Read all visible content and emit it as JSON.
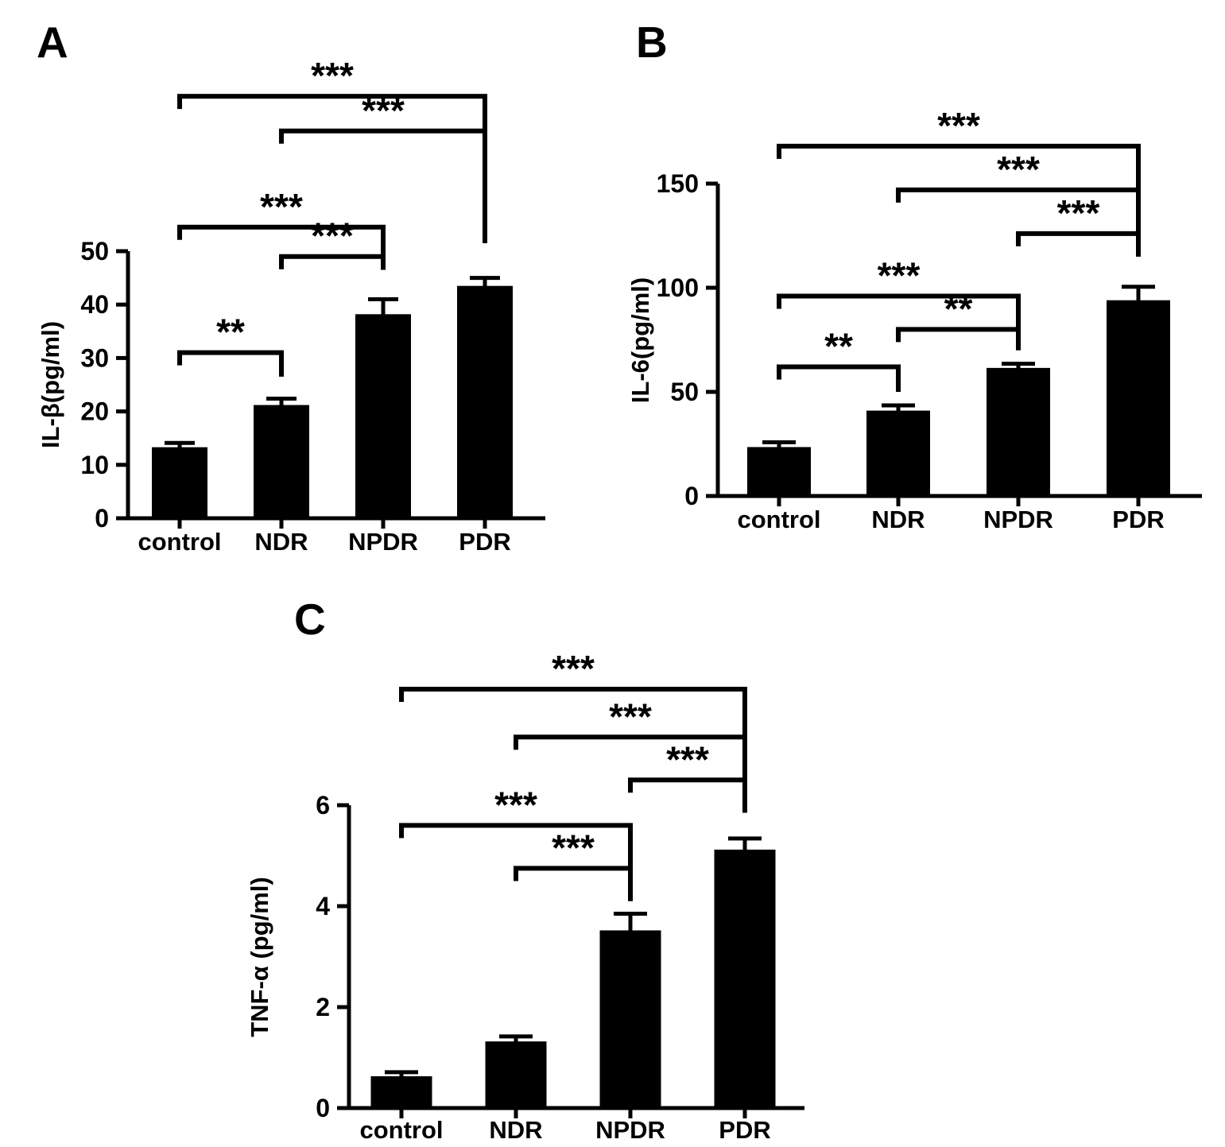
{
  "figure": {
    "background_color": "#ffffff",
    "bar_color": "#000000",
    "axis_color": "#000000",
    "description": "Three-panel bar figure comparing inflammatory cytokine levels (IL-β, IL-6, TNF-α) across control, NDR, NPDR and PDR groups with significance brackets"
  },
  "chart_data": [
    {
      "panel": "A",
      "type": "bar",
      "title": "",
      "xlabel": "",
      "ylabel": "IL-β(pg/ml)",
      "categories": [
        "control",
        "NDR",
        "NPDR",
        "PDR"
      ],
      "values": [
        13.3,
        21.2,
        38.2,
        43.5
      ],
      "errors": [
        0.8,
        1.2,
        2.8,
        1.5
      ],
      "ylim": [
        0,
        50
      ],
      "yticks": [
        0,
        10,
        20,
        30,
        40,
        50
      ],
      "grid": false,
      "legend": null,
      "significance": [
        {
          "a": "control",
          "b": "NDR",
          "label": "**",
          "y": 31,
          "right_end": 26.5
        },
        {
          "a": "NDR",
          "b": "NPDR",
          "label": "***",
          "y": 49,
          "right_end": 46.5
        },
        {
          "a": "control",
          "b": "NPDR",
          "label": "***",
          "y": 54.5,
          "right_end": 46.5
        },
        {
          "a": "NDR",
          "b": "PDR",
          "label": "***",
          "y": 72.5,
          "right_end": 51.5
        },
        {
          "a": "control",
          "b": "PDR",
          "label": "***",
          "y": 79,
          "right_end": 51.5
        }
      ]
    },
    {
      "panel": "B",
      "type": "bar",
      "title": "",
      "xlabel": "",
      "ylabel": "IL-6(pg/ml)",
      "categories": [
        "control",
        "NDR",
        "NPDR",
        "PDR"
      ],
      "values": [
        23.5,
        41,
        61.5,
        94
      ],
      "errors": [
        2.3,
        2.5,
        2,
        6.5
      ],
      "ylim": [
        0,
        150
      ],
      "yticks": [
        0,
        50,
        100,
        150
      ],
      "grid": false,
      "legend": null,
      "significance": [
        {
          "a": "control",
          "b": "NDR",
          "label": "**",
          "y": 62,
          "right_end": 50
        },
        {
          "a": "NDR",
          "b": "NPDR",
          "label": "**",
          "y": 80,
          "right_end": 70
        },
        {
          "a": "control",
          "b": "NPDR",
          "label": "***",
          "y": 96,
          "right_end": 70
        },
        {
          "a": "NPDR",
          "b": "PDR",
          "label": "***",
          "y": 126,
          "right_end": 115
        },
        {
          "a": "NDR",
          "b": "PDR",
          "label": "***",
          "y": 147,
          "right_end": 115
        },
        {
          "a": "control",
          "b": "PDR",
          "label": "***",
          "y": 168,
          "right_end": 115
        }
      ]
    },
    {
      "panel": "C",
      "type": "bar",
      "title": "",
      "xlabel": "",
      "ylabel": "TNF-α (pg/ml)",
      "categories": [
        "control",
        "NDR",
        "NPDR",
        "PDR"
      ],
      "values": [
        0.63,
        1.32,
        3.52,
        5.12
      ],
      "errors": [
        0.08,
        0.1,
        0.33,
        0.22
      ],
      "ylim": [
        0,
        6
      ],
      "yticks": [
        0,
        2,
        4,
        6
      ],
      "grid": false,
      "legend": null,
      "significance": [
        {
          "a": "NDR",
          "b": "NPDR",
          "label": "***",
          "y": 4.75,
          "right_end": 4.1
        },
        {
          "a": "control",
          "b": "NPDR",
          "label": "***",
          "y": 5.6,
          "right_end": 4.1
        },
        {
          "a": "NPDR",
          "b": "PDR",
          "label": "***",
          "y": 6.5,
          "right_end": 5.85
        },
        {
          "a": "NDR",
          "b": "PDR",
          "label": "***",
          "y": 7.35,
          "right_end": 5.85
        },
        {
          "a": "control",
          "b": "PDR",
          "label": "***",
          "y": 8.3,
          "right_end": 5.85
        }
      ]
    }
  ]
}
